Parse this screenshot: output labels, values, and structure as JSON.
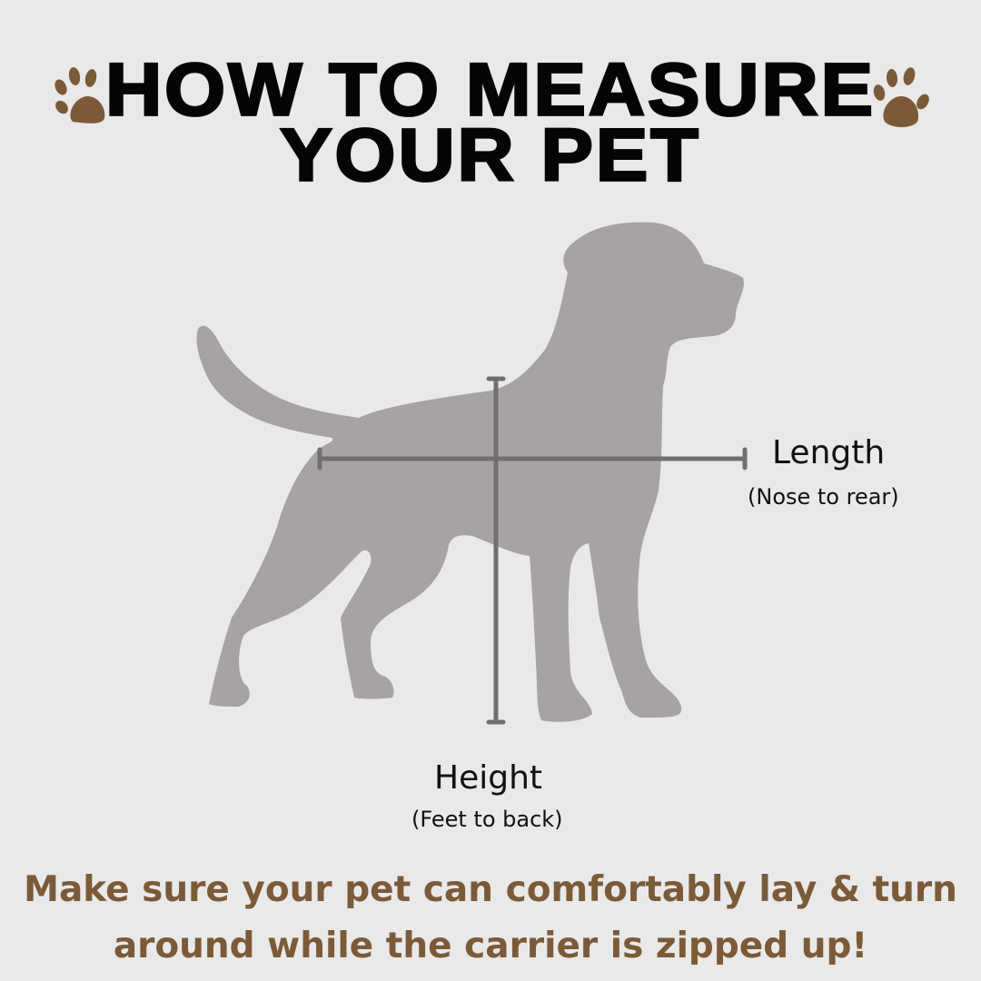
{
  "title": {
    "line1": "HOW TO MEASURE",
    "line2": "YOUR PET"
  },
  "icons": {
    "left": "paw-print-icon",
    "right": "paw-print-icon"
  },
  "colors": {
    "background": "#e9e9e9",
    "silhouette": "#a7a3a3",
    "measure_line": "#6f6f6f",
    "accent_brown": "#7d5a36",
    "title": "#050505"
  },
  "labels": {
    "length": {
      "title": "Length",
      "subtitle": "(Nose to rear)"
    },
    "height": {
      "title": "Height",
      "subtitle": "(Feet to back)"
    }
  },
  "footer": {
    "line1": "Make sure your pet can comfortably lay & turn",
    "line2": "around while the carrier is zipped up!"
  }
}
